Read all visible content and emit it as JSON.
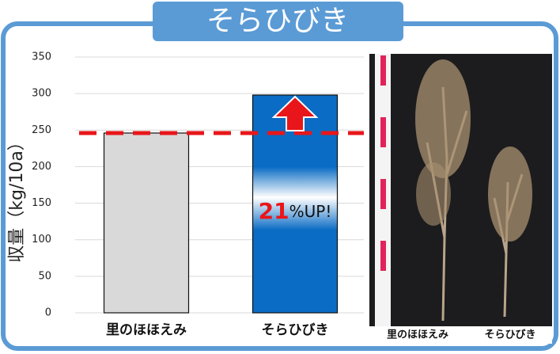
{
  "chart_data": {
    "type": "bar",
    "title": "そらひびき",
    "y_label": "収量（kg/10a）",
    "categories": [
      "里のほほえみ",
      "そらひびき"
    ],
    "values": [
      246,
      298
    ],
    "colors": [
      "#d9d9d9",
      "#0a6cc4"
    ],
    "ylim": [
      0,
      350
    ],
    "yticks": [
      0,
      50,
      100,
      150,
      200,
      250,
      300,
      350
    ],
    "grid": true,
    "annotation": {
      "highlight": "21",
      "text": "%UP!"
    },
    "reference_line_color": "#e8161a",
    "photo_labels": [
      "里のほほえみ",
      "そらひびき"
    ]
  }
}
